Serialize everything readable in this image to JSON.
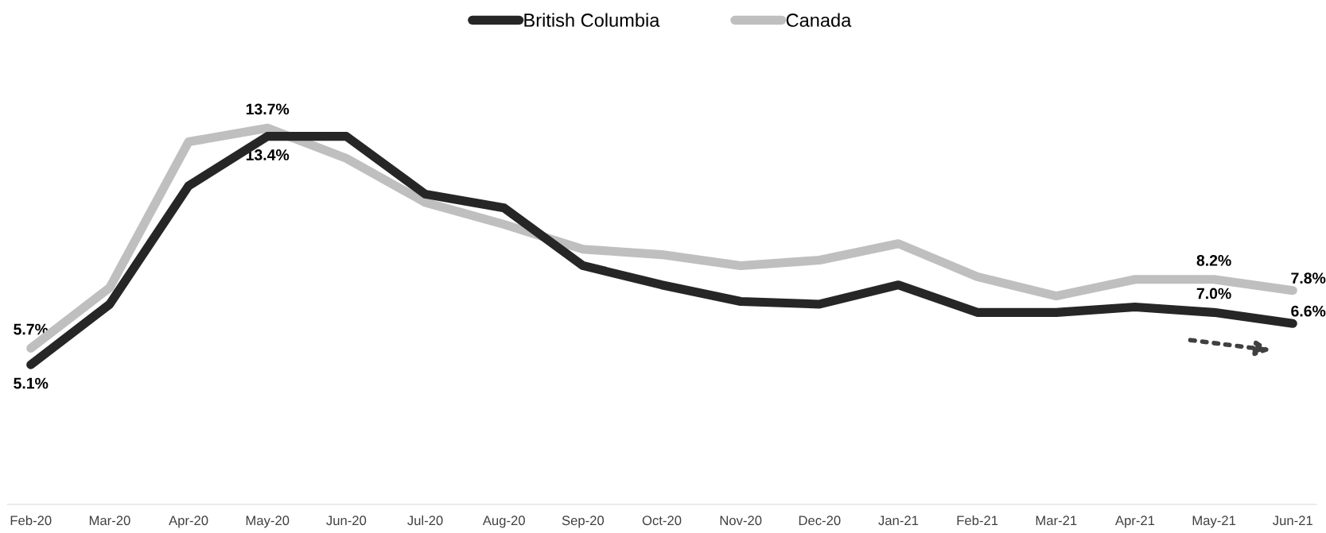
{
  "chart_data": {
    "type": "line",
    "categories": [
      "Feb-20",
      "Mar-20",
      "Apr-20",
      "May-20",
      "Jun-20",
      "Jul-20",
      "Aug-20",
      "Sep-20",
      "Oct-20",
      "Nov-20",
      "Dec-20",
      "Jan-21",
      "Feb-21",
      "Mar-21",
      "Apr-21",
      "May-21",
      "Jun-21"
    ],
    "series": [
      {
        "name": "British Columbia",
        "color": "#262626",
        "values": [
          5.1,
          7.3,
          11.6,
          13.4,
          13.4,
          11.3,
          10.8,
          8.7,
          8.0,
          7.4,
          7.3,
          8.0,
          7.0,
          7.0,
          7.2,
          7.0,
          6.6
        ],
        "value_labels": [
          "5.1%",
          null,
          null,
          "13.4%",
          null,
          null,
          null,
          null,
          null,
          null,
          null,
          null,
          null,
          null,
          null,
          "7.0%",
          "6.6%"
        ]
      },
      {
        "name": "Canada",
        "color": "#bfbfbf",
        "values": [
          5.7,
          7.9,
          13.2,
          13.7,
          12.6,
          11.0,
          10.2,
          9.3,
          9.1,
          8.7,
          8.9,
          9.5,
          8.3,
          7.6,
          8.2,
          8.2,
          7.8
        ],
        "value_labels": [
          "5.7%",
          null,
          null,
          "13.7%",
          null,
          null,
          null,
          null,
          null,
          null,
          null,
          null,
          null,
          null,
          null,
          "8.2%",
          "7.8%"
        ]
      }
    ],
    "tick_labels": "x",
    "grid": false,
    "legend": "top",
    "marker": "none",
    "line_style": "solid"
  }
}
